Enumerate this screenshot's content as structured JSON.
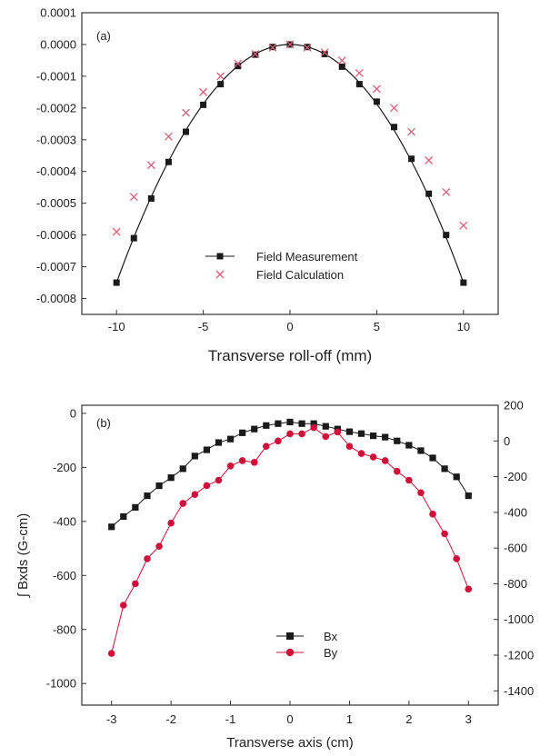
{
  "chart_data": [
    {
      "type": "scatter",
      "panel_label": "(a)",
      "xlabel": "Transverse roll-off (mm)",
      "ylabel": "",
      "xlim": [
        -12,
        12
      ],
      "ylim": [
        -0.00085,
        0.0001
      ],
      "x_ticks": [
        "-10",
        "-5",
        "0",
        "5",
        "10"
      ],
      "y_ticks": [
        "0.0001",
        "0.0000",
        "-0.0001",
        "-0.0002",
        "-0.0003",
        "-0.0004",
        "-0.0005",
        "-0.0006",
        "-0.0007",
        "-0.0008"
      ],
      "legend_position": "bottom-center",
      "series": [
        {
          "name": "Field Measurement",
          "marker": "square",
          "line": true,
          "color": "#1a1a1a",
          "x": [
            -10,
            -9,
            -8,
            -7,
            -6,
            -5,
            -4,
            -3,
            -2,
            -1,
            0,
            1,
            2,
            3,
            4,
            5,
            6,
            7,
            8,
            9,
            10
          ],
          "y": [
            -0.00075,
            -0.00061,
            -0.000485,
            -0.00037,
            -0.000275,
            -0.00019,
            -0.000125,
            -6.8e-05,
            -3.2e-05,
            -8e-06,
            0.0,
            -8e-06,
            -3e-05,
            -7e-05,
            -0.000125,
            -0.00018,
            -0.00026,
            -0.00036,
            -0.00047,
            -0.0006,
            -0.00075
          ]
        },
        {
          "name": "Field Calculation",
          "marker": "x",
          "line": false,
          "color": "#d9607a",
          "x": [
            -10,
            -9,
            -8,
            -7,
            -6,
            -5,
            -4,
            -3,
            -2,
            -1,
            0,
            1,
            2,
            3,
            4,
            5,
            6,
            7,
            8,
            9,
            10
          ],
          "y": [
            -0.00059,
            -0.00048,
            -0.00038,
            -0.00029,
            -0.000215,
            -0.00015,
            -0.0001,
            -6e-05,
            -3e-05,
            -1e-05,
            0.0,
            -1e-05,
            -2.5e-05,
            -5e-05,
            -9e-05,
            -0.00014,
            -0.0002,
            -0.000275,
            -0.000365,
            -0.000465,
            -0.00057
          ]
        }
      ]
    },
    {
      "type": "line",
      "panel_label": "(b)",
      "xlabel": "Transverse axis (cm)",
      "ylabel": "∫ Bxds (G-cm)",
      "y2label": "",
      "xlim": [
        -3.5,
        3.5
      ],
      "ylim": [
        -1080,
        30
      ],
      "y2lim": [
        -1480,
        200
      ],
      "x_ticks": [
        "-3",
        "-2",
        "-1",
        "0",
        "1",
        "2",
        "3"
      ],
      "y_ticks": [
        "0",
        "-200",
        "-400",
        "-600",
        "-800",
        "-1000"
      ],
      "y2_ticks": [
        "200",
        "0",
        "-200",
        "-400",
        "-600",
        "-800",
        "-1000",
        "-1200",
        "-1400"
      ],
      "legend_position": "bottom-center",
      "series": [
        {
          "name": "Bx",
          "axis": "left",
          "marker": "square",
          "color": "#1a1a1a",
          "x": [
            -3.0,
            -2.8,
            -2.6,
            -2.4,
            -2.2,
            -2.0,
            -1.8,
            -1.6,
            -1.4,
            -1.2,
            -1.0,
            -0.8,
            -0.6,
            -0.4,
            -0.2,
            0.0,
            0.2,
            0.4,
            0.6,
            0.8,
            1.0,
            1.2,
            1.4,
            1.6,
            1.8,
            2.0,
            2.2,
            2.4,
            2.6,
            2.8,
            3.0
          ],
          "y": [
            -420,
            -382,
            -348,
            -305,
            -268,
            -238,
            -205,
            -158,
            -135,
            -108,
            -95,
            -72,
            -58,
            -45,
            -38,
            -32,
            -38,
            -38,
            -48,
            -58,
            -68,
            -75,
            -83,
            -88,
            -102,
            -118,
            -138,
            -165,
            -205,
            -235,
            -305
          ]
        },
        {
          "name": "By",
          "axis": "right",
          "marker": "circle",
          "color": "#d0103a",
          "x": [
            -3.0,
            -2.8,
            -2.6,
            -2.4,
            -2.2,
            -2.0,
            -1.8,
            -1.6,
            -1.4,
            -1.2,
            -1.0,
            -0.8,
            -0.6,
            -0.4,
            -0.2,
            0.0,
            0.2,
            0.4,
            0.6,
            0.8,
            1.0,
            1.2,
            1.4,
            1.6,
            1.8,
            2.0,
            2.2,
            2.4,
            2.6,
            2.8,
            3.0
          ],
          "y": [
            -1190,
            -920,
            -800,
            -660,
            -590,
            -460,
            -350,
            -300,
            -250,
            -220,
            -140,
            -110,
            -120,
            -30,
            0,
            40,
            40,
            75,
            25,
            50,
            -30,
            -70,
            -90,
            -110,
            -170,
            -220,
            -290,
            -410,
            -520,
            -660,
            -830
          ]
        }
      ]
    }
  ]
}
